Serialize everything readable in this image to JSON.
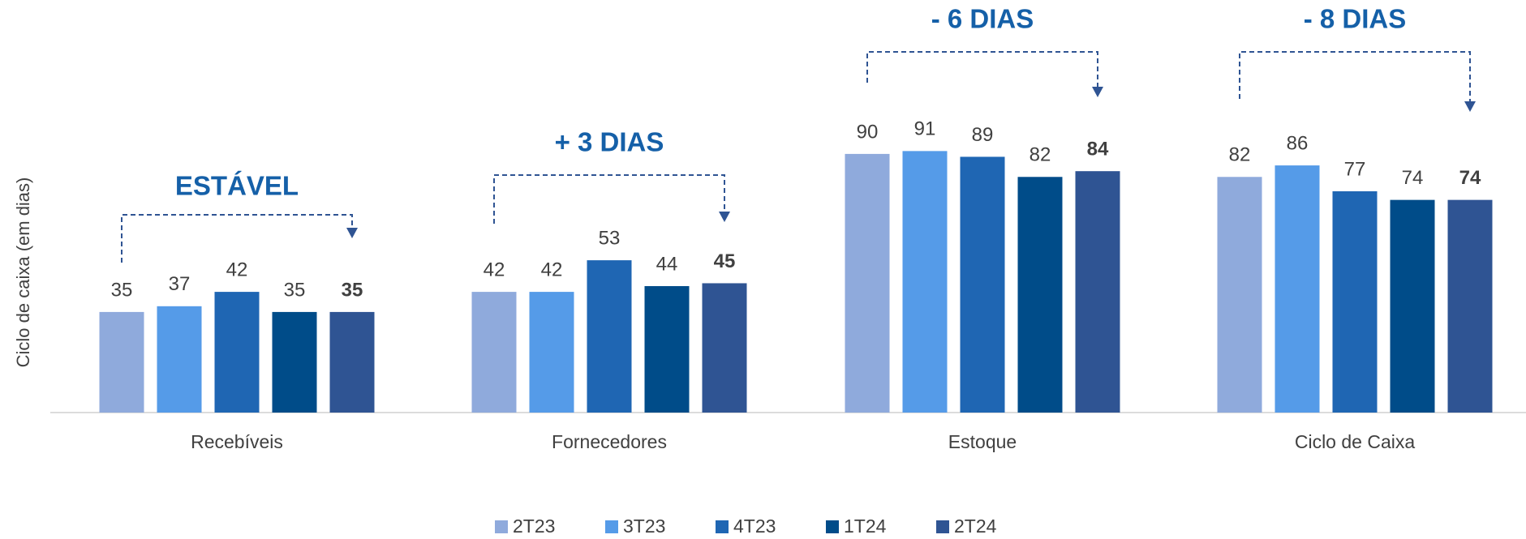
{
  "chart_data": {
    "type": "bar",
    "y_label": "Ciclo de caixa (em dias)",
    "categories": [
      "Recebíveis",
      "Fornecedores",
      "Estoque",
      "Ciclo de Caixa"
    ],
    "series": [
      {
        "name": "2T23",
        "color": "#8FAADC",
        "values": [
          35,
          42,
          90,
          82
        ]
      },
      {
        "name": "3T23",
        "color": "#559BE8",
        "values": [
          37,
          42,
          91,
          86
        ]
      },
      {
        "name": "4T23",
        "color": "#1F66B3",
        "values": [
          42,
          53,
          89,
          77
        ]
      },
      {
        "name": "1T24",
        "color": "#004C89",
        "values": [
          35,
          44,
          82,
          74
        ]
      },
      {
        "name": "2T24",
        "color": "#2F5493",
        "values": [
          35,
          45,
          84,
          74
        ]
      }
    ],
    "annotations": [
      "ESTÁVEL",
      "+ 3 DIAS",
      "- 6 DIAS",
      "- 8 DIAS"
    ],
    "annotation_color": "#1560A8",
    "ylim": [
      0,
      143
    ],
    "legend": "bottom"
  }
}
